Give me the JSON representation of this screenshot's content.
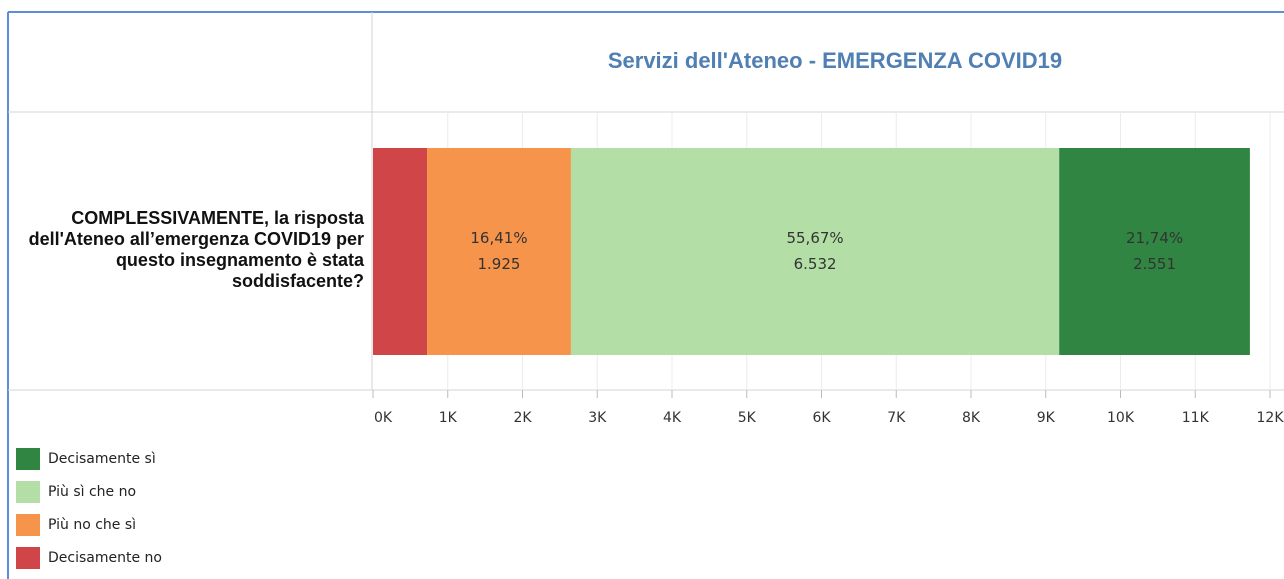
{
  "chart_data": {
    "type": "stacked_barh",
    "title": "Servizi dell'Ateneo - EMERGENZA COVID19",
    "categories": [
      "COMPLESSIVAMENTE, la risposta dell'Ateneo all’emergenza COVID19 per questo insegnamento è stata soddisfacente?"
    ],
    "series": [
      {
        "name": "Decisamente no",
        "color": "#d04548",
        "values": [
          723
        ],
        "value_labels": [
          null
        ],
        "percent_labels": [
          null
        ]
      },
      {
        "name": "Più no che sì",
        "color": "#f7944b",
        "values": [
          1925
        ],
        "value_labels": [
          "1.925"
        ],
        "percent_labels": [
          "16,41%"
        ]
      },
      {
        "name": "Più sì che no",
        "color": "#b3dfa6",
        "values": [
          6532
        ],
        "value_labels": [
          "6.532"
        ],
        "percent_labels": [
          "55,67%"
        ]
      },
      {
        "name": "Decisamente sì",
        "color": "#2f8541",
        "values": [
          2551
        ],
        "value_labels": [
          "2.551"
        ],
        "percent_labels": [
          "21,74%"
        ]
      }
    ],
    "xlim": [
      0,
      12000
    ],
    "xticks": [
      {
        "value": 0,
        "label": "0K"
      },
      {
        "value": 1000,
        "label": "1K"
      },
      {
        "value": 2000,
        "label": "2K"
      },
      {
        "value": 3000,
        "label": "3K"
      },
      {
        "value": 4000,
        "label": "4K"
      },
      {
        "value": 5000,
        "label": "5K"
      },
      {
        "value": 6000,
        "label": "6K"
      },
      {
        "value": 7000,
        "label": "7K"
      },
      {
        "value": 8000,
        "label": "8K"
      },
      {
        "value": 9000,
        "label": "9K"
      },
      {
        "value": 10000,
        "label": "10K"
      },
      {
        "value": 11000,
        "label": "11K"
      },
      {
        "value": 12000,
        "label": "12K"
      }
    ],
    "grid": true,
    "legend": "bottom-left"
  }
}
